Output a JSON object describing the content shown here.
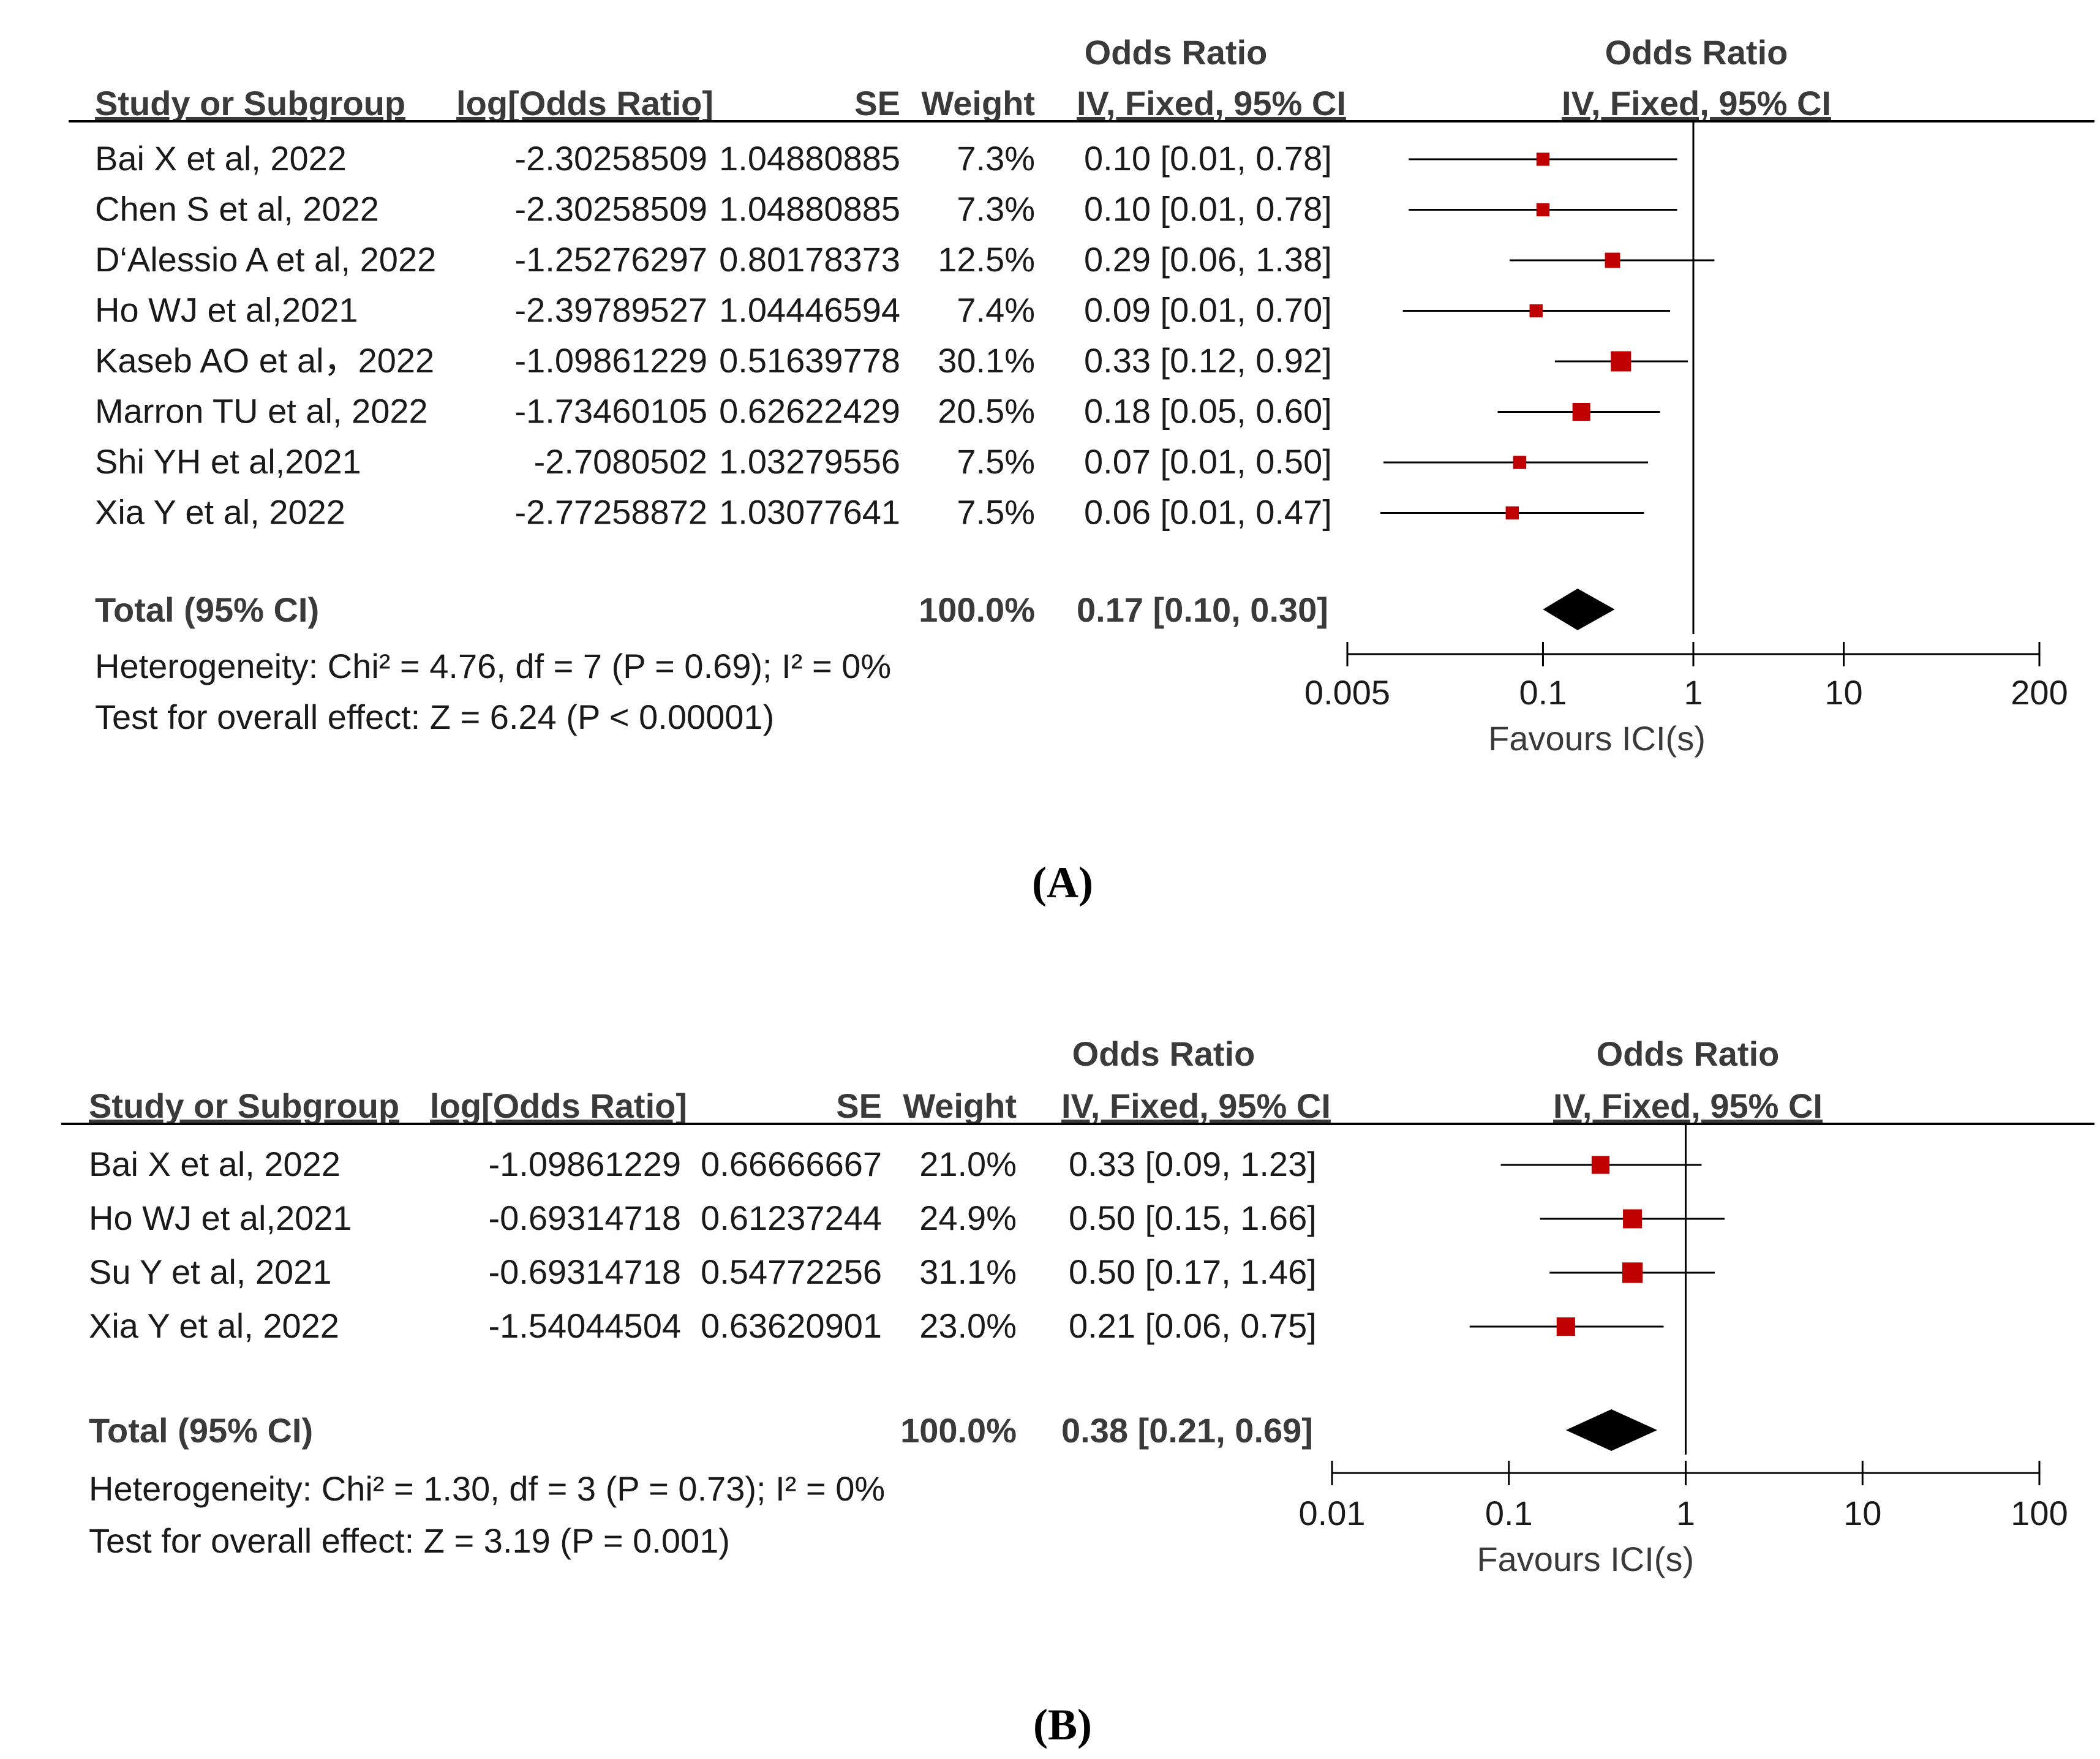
{
  "chart_data": [
    {
      "type": "forest",
      "panel_label": "(A)",
      "headers": {
        "study": "Study or Subgroup",
        "log_or": "log[Odds Ratio]",
        "se": "SE",
        "weight": "Weight",
        "or_title": "Odds Ratio",
        "or_method": "IV, Fixed, 95% CI",
        "plot_title": "Odds Ratio",
        "plot_method": "IV, Fixed, 95% CI"
      },
      "studies": [
        {
          "name": "Bai X et al, 2022",
          "log_or": "-2.30258509",
          "se": "1.04880885",
          "weight": "7.3%",
          "ci_text": "0.10 [0.01, 0.78]",
          "or": 0.1,
          "lo": 0.0128,
          "hi": 0.78,
          "w": 7.3
        },
        {
          "name": "Chen S et al, 2022",
          "log_or": "-2.30258509",
          "se": "1.04880885",
          "weight": "7.3%",
          "ci_text": "0.10 [0.01, 0.78]",
          "or": 0.1,
          "lo": 0.0128,
          "hi": 0.78,
          "w": 7.3
        },
        {
          "name": "D‘Alessio A et al, 2022",
          "log_or": "-1.25276297",
          "se": "0.80178373",
          "weight": "12.5%",
          "ci_text": "0.29 [0.06, 1.38]",
          "or": 0.29,
          "lo": 0.06,
          "hi": 1.38,
          "w": 12.5
        },
        {
          "name": "Ho WJ et al,2021",
          "log_or": "-2.39789527",
          "se": "1.04446594",
          "weight": "7.4%",
          "ci_text": "0.09 [0.01, 0.70]",
          "or": 0.09,
          "lo": 0.0117,
          "hi": 0.7,
          "w": 7.4
        },
        {
          "name": "Kaseb AO et al，2022",
          "log_or": "-1.09861229",
          "se": "0.51639778",
          "weight": "30.1%",
          "ci_text": "0.33 [0.12, 0.92]",
          "or": 0.33,
          "lo": 0.12,
          "hi": 0.92,
          "w": 30.1
        },
        {
          "name": "Marron TU et al, 2022",
          "log_or": "-1.73460105",
          "se": "0.62622429",
          "weight": "20.5%",
          "ci_text": "0.18 [0.05, 0.60]",
          "or": 0.18,
          "lo": 0.05,
          "hi": 0.6,
          "w": 20.5
        },
        {
          "name": "Shi YH et al,2021",
          "log_or": "-2.7080502",
          "se": "1.03279556",
          "weight": "7.5%",
          "ci_text": "0.07 [0.01, 0.50]",
          "or": 0.07,
          "lo": 0.0087,
          "hi": 0.5,
          "w": 7.5
        },
        {
          "name": "Xia Y et al, 2022",
          "log_or": "-2.77258872",
          "se": "1.03077641",
          "weight": "7.5%",
          "ci_text": "0.06 [0.01, 0.47]",
          "or": 0.0625,
          "lo": 0.0083,
          "hi": 0.47,
          "w": 7.5
        }
      ],
      "total": {
        "label": "Total (95% CI)",
        "weight": "100.0%",
        "ci_text": "0.17 [0.10, 0.30]",
        "or": 0.17,
        "lo": 0.1,
        "hi": 0.3
      },
      "heterogeneity": "Heterogeneity: Chi² = 4.76, df = 7 (P = 0.69); I² = 0%",
      "overall_effect": "Test for overall effect: Z = 6.24 (P < 0.00001)",
      "axis": {
        "scale": "log",
        "xlim": [
          0.005,
          200
        ],
        "ticks": [
          0.005,
          0.1,
          1,
          10,
          200
        ],
        "tick_labels": [
          "0.005",
          "0.1",
          "1",
          "10",
          "200"
        ],
        "xlabel": "Favours ICI(s)"
      }
    },
    {
      "type": "forest",
      "panel_label": "(B)",
      "headers": {
        "study": "Study or Subgroup",
        "log_or": "log[Odds Ratio]",
        "se": "SE",
        "weight": "Weight",
        "or_title": "Odds Ratio",
        "or_method": "IV, Fixed, 95% CI",
        "plot_title": "Odds Ratio",
        "plot_method": "IV, Fixed, 95% CI"
      },
      "studies": [
        {
          "name": "Bai X et al, 2022",
          "log_or": "-1.09861229",
          "se": "0.66666667",
          "weight": "21.0%",
          "ci_text": "0.33 [0.09, 1.23]",
          "or": 0.33,
          "lo": 0.09,
          "hi": 1.23,
          "w": 21.0
        },
        {
          "name": "Ho WJ et al,2021",
          "log_or": "-0.69314718",
          "se": "0.61237244",
          "weight": "24.9%",
          "ci_text": "0.50 [0.15, 1.66]",
          "or": 0.5,
          "lo": 0.15,
          "hi": 1.66,
          "w": 24.9
        },
        {
          "name": "Su Y et al, 2021",
          "log_or": "-0.69314718",
          "se": "0.54772256",
          "weight": "31.1%",
          "ci_text": "0.50 [0.17, 1.46]",
          "or": 0.5,
          "lo": 0.17,
          "hi": 1.46,
          "w": 31.1
        },
        {
          "name": "Xia Y et al, 2022",
          "log_or": "-1.54044504",
          "se": "0.63620901",
          "weight": "23.0%",
          "ci_text": "0.21 [0.06, 0.75]",
          "or": 0.21,
          "lo": 0.06,
          "hi": 0.75,
          "w": 23.0
        }
      ],
      "total": {
        "label": "Total (95% CI)",
        "weight": "100.0%",
        "ci_text": "0.38 [0.21, 0.69]",
        "or": 0.38,
        "lo": 0.21,
        "hi": 0.69
      },
      "heterogeneity": "Heterogeneity: Chi² = 1.30, df = 3 (P = 0.73); I² = 0%",
      "overall_effect": "Test for overall effect: Z = 3.19 (P = 0.001)",
      "axis": {
        "scale": "log",
        "xlim": [
          0.01,
          100
        ],
        "ticks": [
          0.01,
          0.1,
          1,
          10,
          100
        ],
        "tick_labels": [
          "0.01",
          "0.1",
          "1",
          "10",
          "100"
        ],
        "xlabel": "Favours ICI(s)"
      }
    }
  ],
  "colors": {
    "marker": "#c00000",
    "line": "#000000",
    "diamond": "#000000",
    "text": "#1a1a1a"
  }
}
